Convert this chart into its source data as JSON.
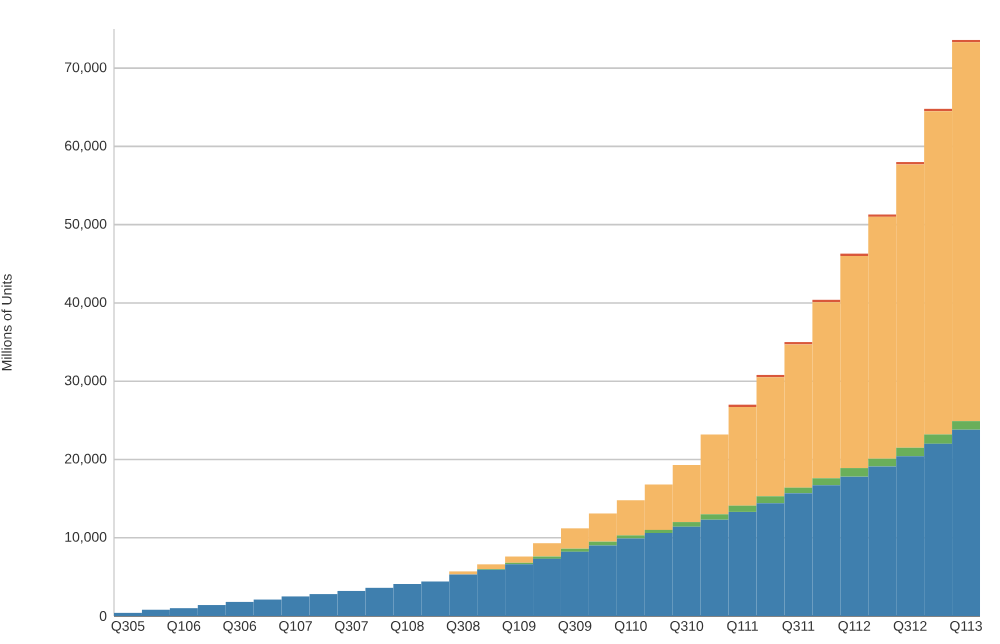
{
  "chart_data": {
    "type": "bar",
    "stacked": true,
    "ylabel": "Millions of Units",
    "categories": [
      "Q305",
      null,
      "Q106",
      null,
      "Q306",
      null,
      "Q107",
      null,
      "Q307",
      null,
      "Q108",
      null,
      "Q308",
      null,
      "Q109",
      null,
      "Q309",
      null,
      "Q110",
      null,
      "Q310",
      null,
      "Q111",
      null,
      "Q311",
      null,
      "Q112",
      null,
      "Q312",
      null,
      "Q113"
    ],
    "series": [
      {
        "color": "#3f7fae",
        "values": [
          400,
          800,
          1000,
          1400,
          1800,
          2100,
          2500,
          2800,
          3200,
          3600,
          4100,
          4400,
          5300,
          5900,
          6600,
          7300,
          8200,
          9000,
          9900,
          10600,
          11400,
          12300,
          13300,
          14400,
          15700,
          16700,
          17800,
          19100,
          20400,
          22000,
          23800
        ]
      },
      {
        "color": "#6aaf5a",
        "values": [
          0,
          0,
          0,
          0,
          0,
          0,
          0,
          0,
          0,
          0,
          0,
          0,
          0,
          100,
          200,
          300,
          400,
          500,
          400,
          400,
          600,
          700,
          800,
          900,
          700,
          900,
          1100,
          1000,
          1100,
          1200,
          1100
        ]
      },
      {
        "color": "#f5b866",
        "values": [
          0,
          0,
          0,
          0,
          0,
          0,
          0,
          0,
          0,
          0,
          0,
          0,
          400,
          600,
          800,
          1700,
          2600,
          3600,
          4500,
          5800,
          7300,
          10200,
          12600,
          15200,
          18300,
          22500,
          27100,
          30900,
          36200,
          41300,
          48400
        ]
      },
      {
        "color": "#d9573a",
        "values": [
          0,
          0,
          0,
          0,
          0,
          0,
          0,
          0,
          0,
          0,
          0,
          0,
          0,
          0,
          0,
          0,
          0,
          0,
          0,
          0,
          0,
          0,
          300,
          300,
          300,
          300,
          300,
          300,
          300,
          300,
          300
        ]
      }
    ],
    "ylim": [
      0,
      75000
    ],
    "yticks": [
      0,
      {
        "value": 10000,
        "label": "10,000"
      },
      {
        "value": 20000,
        "label": "20,000"
      },
      {
        "value": 30000,
        "label": "30,000"
      },
      {
        "value": 40000,
        "label": "40,000"
      },
      {
        "value": 50000,
        "label": "50,000"
      },
      {
        "value": 60000,
        "label": "60,000"
      },
      {
        "value": 70000,
        "label": "70,000"
      }
    ],
    "grid": "y"
  }
}
